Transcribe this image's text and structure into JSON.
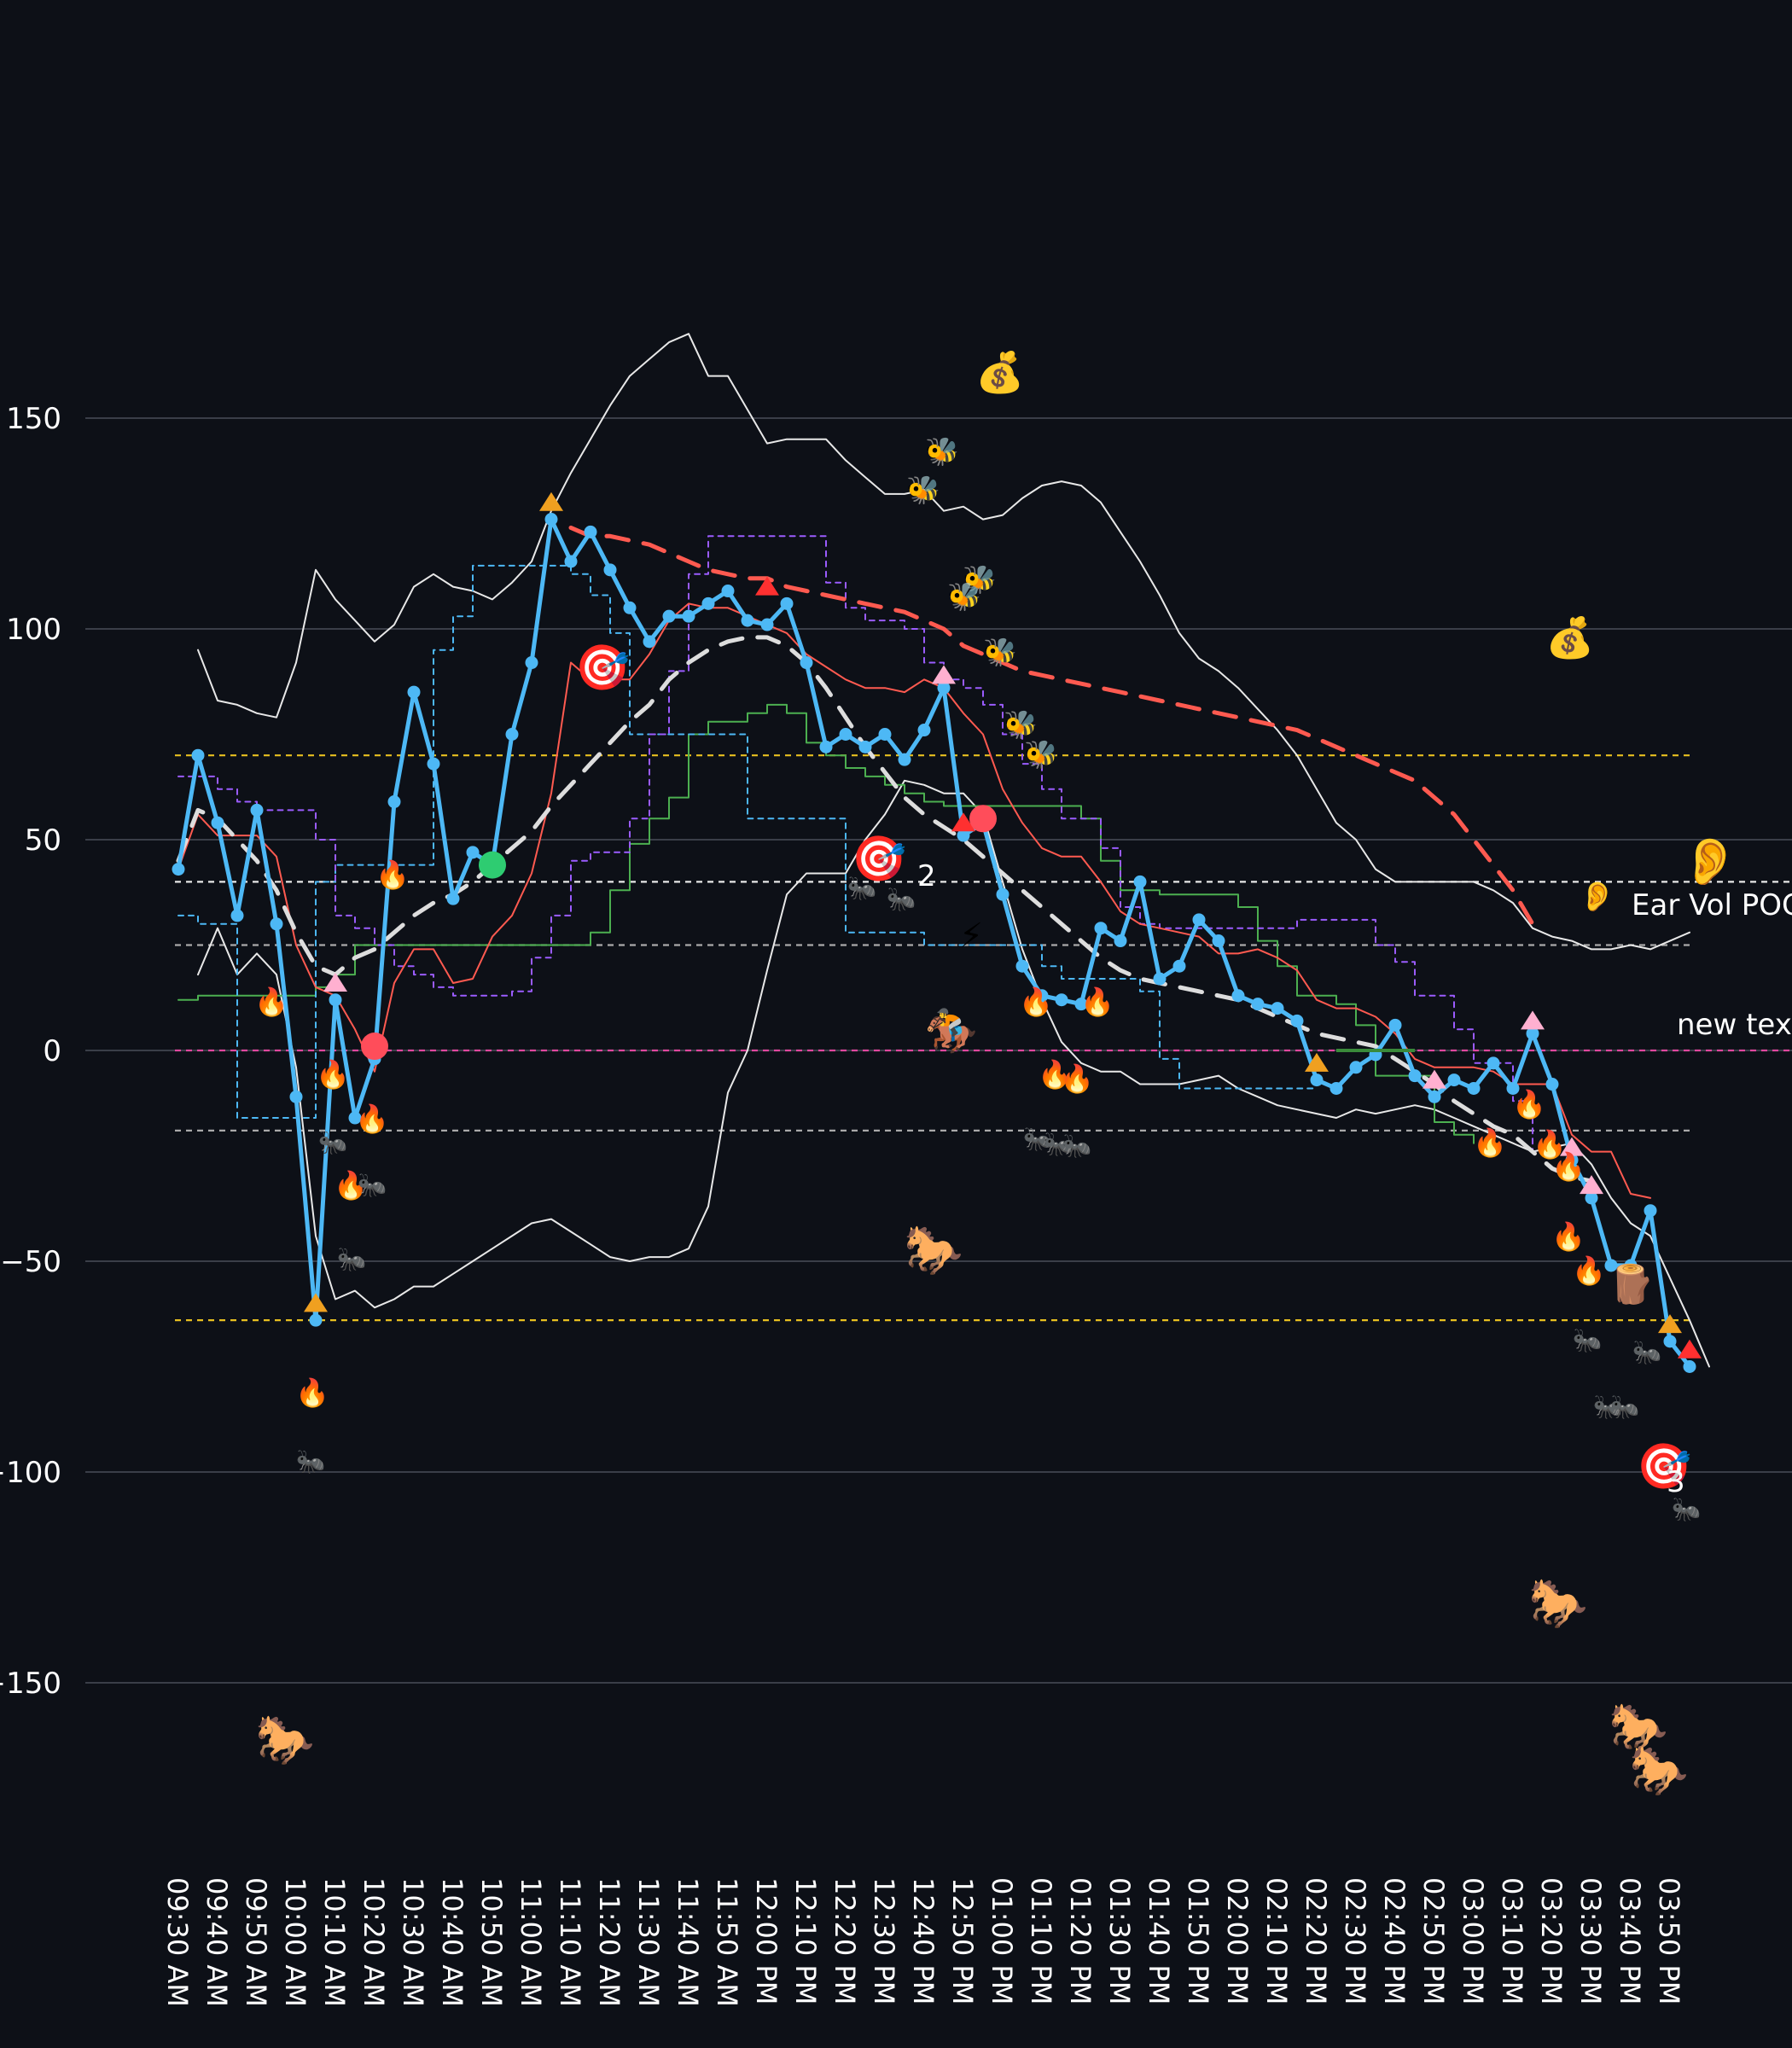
{
  "chart_data": {
    "type": "line",
    "y_range": [
      -190,
      200
    ],
    "y_ticks": [
      150,
      100,
      50,
      0,
      -50,
      -100,
      -150
    ],
    "y_tick_labels": [
      "150",
      "100",
      "50",
      "0",
      "−50",
      "−100",
      "−150"
    ],
    "x_tick_labels": [
      "09:30 AM",
      "09:40 AM",
      "09:50 AM",
      "10:00 AM",
      "10:10 AM",
      "10:20 AM",
      "10:30 AM",
      "10:40 AM",
      "10:50 AM",
      "11:00 AM",
      "11:10 AM",
      "11:20 AM",
      "11:30 AM",
      "11:40 AM",
      "11:50 AM",
      "12:00 PM",
      "12:10 PM",
      "12:20 PM",
      "12:30 PM",
      "12:40 PM",
      "12:50 PM",
      "01:00 PM",
      "01:10 PM",
      "01:20 PM",
      "01:30 PM",
      "01:40 PM",
      "01:50 PM",
      "02:00 PM",
      "02:10 PM",
      "02:20 PM",
      "02:30 PM",
      "02:40 PM",
      "02:50 PM",
      "03:00 PM",
      "03:10 PM",
      "03:20 PM",
      "03:30 PM",
      "03:40 PM",
      "03:50 PM"
    ],
    "step_minutes": 5,
    "series": [
      {
        "name": "price",
        "color": "#4db8f5",
        "style": "thick-markers",
        "values": [
          43,
          70,
          54,
          32,
          57,
          30,
          -11,
          -64,
          12,
          -16,
          -2,
          59,
          85,
          68,
          36,
          47,
          44,
          75,
          92,
          126,
          116,
          123,
          114,
          105,
          97,
          103,
          103,
          106,
          109,
          102,
          101,
          106,
          92,
          72,
          75,
          72,
          75,
          69,
          76,
          86,
          51,
          54,
          37,
          20,
          13,
          12,
          11,
          29,
          26,
          40,
          17,
          20,
          31,
          26,
          13,
          11,
          10,
          7,
          -7,
          -9,
          -4,
          -1,
          6,
          -6,
          -11,
          -7,
          -9,
          -3,
          -9,
          4,
          -8,
          -26,
          -35,
          -51,
          -51,
          -38,
          -69,
          -75
        ]
      },
      {
        "name": "upper band",
        "color": "#e8e8e8",
        "style": "thin",
        "start": 1,
        "values": [
          95,
          83,
          82,
          80,
          79,
          92,
          114,
          107,
          102,
          97,
          101,
          110,
          113,
          110,
          109,
          107,
          111,
          116,
          128,
          137,
          145,
          153,
          160,
          164,
          168,
          170,
          160,
          160,
          152,
          144,
          145,
          145,
          145,
          140,
          136,
          132,
          132,
          133,
          128,
          129,
          126,
          127,
          131,
          134,
          135,
          134,
          130,
          123,
          116,
          108,
          99,
          93,
          90,
          86,
          81,
          76,
          70,
          62,
          54,
          50,
          43,
          40,
          40,
          40,
          40,
          40,
          38,
          35,
          29,
          27,
          26,
          24,
          24,
          25,
          24,
          26,
          28
        ]
      },
      {
        "name": "lower band",
        "color": "#e8e8e8",
        "style": "thin",
        "start": 1,
        "values": [
          18,
          29,
          18,
          23,
          18,
          -4,
          -44,
          -59,
          -57,
          -61,
          -59,
          -56,
          -56,
          -53,
          -50,
          -47,
          -44,
          -41,
          -40,
          -43,
          -46,
          -49,
          -50,
          -49,
          -49,
          -47,
          -37,
          -10,
          0,
          19,
          37,
          42,
          42,
          42,
          50,
          56,
          64,
          63,
          61,
          61,
          56,
          40,
          24,
          12,
          2,
          -3,
          -5,
          -5,
          -8,
          -8,
          -8,
          -7,
          -6,
          -9,
          -11,
          -13,
          -14,
          -15,
          -16,
          -14,
          -15,
          -14,
          -13,
          -14,
          -16,
          -18,
          -20,
          -22,
          -24,
          -23,
          -22,
          -27,
          -35,
          -41,
          -44,
          -54,
          -64,
          -75
        ]
      },
      {
        "name": "moving average",
        "color": "#e8e8e8",
        "style": "dashed-thick",
        "values": [
          45,
          57,
          55,
          50,
          45,
          38,
          28,
          20,
          18,
          22,
          24,
          28,
          32,
          35,
          37,
          40,
          44,
          48,
          52,
          58,
          63,
          68,
          73,
          78,
          82,
          88,
          92,
          95,
          97,
          98,
          98,
          96,
          92,
          86,
          79,
          72,
          66,
          60,
          56,
          53,
          50,
          46,
          42,
          38,
          34,
          30,
          26,
          22,
          19,
          17,
          16,
          15,
          14,
          13,
          12,
          10,
          8,
          6,
          4,
          3,
          2,
          1,
          -2,
          -5,
          -8,
          -12,
          -15,
          -18,
          -20,
          -24,
          -28,
          -30,
          -31
        ]
      },
      {
        "name": "resistance step",
        "color": "#ff5a50",
        "style": "dashed-thick",
        "start": 20,
        "values": [
          124,
          122,
          122,
          121,
          120,
          118,
          116,
          114,
          113,
          112,
          112,
          110,
          109,
          108,
          107,
          106,
          105,
          104,
          102,
          100,
          96,
          94,
          92,
          90,
          89,
          88,
          87,
          86,
          85,
          84,
          83,
          82,
          81,
          80,
          79,
          78,
          77,
          76,
          74,
          72,
          70,
          68,
          66,
          64,
          60,
          56,
          50,
          44,
          38,
          30
        ]
      },
      {
        "name": "red trail",
        "color": "#ff5a50",
        "style": "thin",
        "values": [
          43,
          56,
          51,
          51,
          51,
          46,
          25,
          15,
          13,
          5,
          -5,
          16,
          24,
          24,
          16,
          17,
          27,
          32,
          42,
          61,
          92,
          88,
          88,
          88,
          94,
          102,
          106,
          105,
          105,
          103,
          101,
          99,
          94,
          91,
          88,
          86,
          86,
          85,
          88,
          86,
          80,
          75,
          62,
          54,
          48,
          46,
          46,
          40,
          33,
          30,
          29,
          28,
          27,
          23,
          23,
          24,
          22,
          19,
          12,
          10,
          10,
          8,
          4,
          -2,
          -4,
          -4,
          -4,
          -5,
          -8,
          -8,
          -8,
          -20,
          -24,
          -24,
          -34,
          -35
        ]
      },
      {
        "name": "green trail",
        "color": "#4caf50",
        "style": "thin-step",
        "values": [
          12,
          13,
          13,
          13,
          13,
          13,
          13,
          15,
          18,
          25,
          25,
          25,
          25,
          25,
          25,
          25,
          25,
          25,
          25,
          25,
          25,
          28,
          38,
          49,
          55,
          60,
          75,
          78,
          78,
          80,
          82,
          80,
          73,
          70,
          67,
          65,
          63,
          61,
          59,
          58,
          58,
          58,
          58,
          58,
          58,
          58,
          55,
          45,
          38,
          38,
          37,
          37,
          37,
          37,
          34,
          26,
          20,
          13,
          13,
          11,
          6,
          -6,
          -6,
          -6,
          -17,
          -20,
          -22
        ]
      },
      {
        "name": "purple trail",
        "color": "#9b5cff",
        "style": "dashed-thin",
        "values": [
          65,
          65,
          62,
          59,
          57,
          57,
          57,
          50,
          32,
          29,
          25,
          20,
          18,
          15,
          13,
          13,
          13,
          14,
          22,
          32,
          45,
          47,
          47,
          55,
          75,
          90,
          113,
          122,
          122,
          122,
          122,
          122,
          122,
          111,
          105,
          102,
          102,
          100,
          92,
          88,
          86,
          82,
          75,
          68,
          62,
          55,
          55,
          48,
          34,
          30,
          29,
          29,
          29,
          29,
          29,
          29,
          29,
          31,
          31,
          31,
          31,
          25,
          21,
          13,
          13,
          5,
          -3,
          -3,
          -12,
          -24,
          -25
        ]
      },
      {
        "name": "cyan trail",
        "color": "#4db8f5",
        "style": "dashed-thin",
        "values": [
          32,
          30,
          30,
          -16,
          -16,
          -16,
          -16,
          40,
          44,
          44,
          44,
          44,
          44,
          95,
          103,
          115,
          115,
          115,
          115,
          115,
          113,
          108,
          99,
          75,
          75,
          75,
          75,
          75,
          75,
          55,
          55,
          55,
          55,
          55,
          28,
          28,
          28,
          28,
          25,
          25,
          25,
          25,
          25,
          25,
          20,
          17,
          17,
          17,
          17,
          14,
          -2,
          -9,
          -9,
          -9,
          -9,
          -9,
          -9,
          -9,
          -9
        ]
      }
    ],
    "horizontal_lines": [
      {
        "value": 70,
        "color": "#e8c020"
      },
      {
        "value": 40,
        "color": "#e8e8e8"
      },
      {
        "value": 25,
        "color": "#aaaaaa"
      },
      {
        "value": 0,
        "color": "#e0479e"
      },
      {
        "value": -19,
        "color": "#aaaaaa"
      },
      {
        "value": -64,
        "color": "#e8c020"
      }
    ],
    "annotations": [
      {
        "label": "2",
        "value": 42
      },
      {
        "label": "3",
        "value": -100
      },
      {
        "label": "Ear Vol POC",
        "value": 34
      },
      {
        "label": "new text",
        "value": 6
      }
    ],
    "colors": {
      "background": "#0d1017",
      "grid": "#3a3e48",
      "orange": "#f0a020",
      "pink": "#ffb0d0",
      "red": "#ff3030",
      "green": "#2ecc71"
    }
  }
}
